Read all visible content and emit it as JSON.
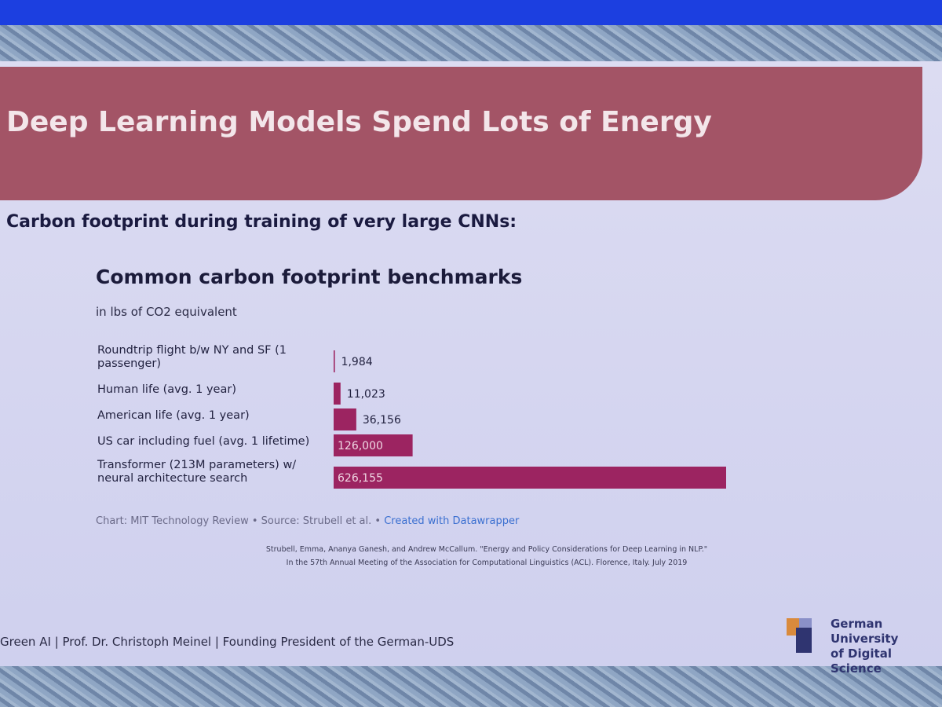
{
  "slide": {
    "title": "Deep Learning Models Spend Lots of Energy",
    "subtitle": "Carbon footprint during training of very large CNNs:",
    "chart_source": "Chart: MIT Technology Review • Source: Strubell et al. •",
    "chart_credit": "Created with Datawrapper",
    "citation": [
      "Strubell, Emma, Ananya Ganesh, and Andrew McCallum. \"Energy and Policy Considerations for Deep Learning in NLP.\"",
      "In the 57th Annual Meeting of the Association for Computational Linguistics (ACL). Florence, Italy. July 2019"
    ],
    "footer": "Green AI | Prof. Dr. Christoph Meinel | Founding President of the German-UDS",
    "logo": [
      "German University",
      "of Digital Science"
    ]
  },
  "chart_data": {
    "type": "hbar",
    "title": "Common carbon footprint benchmarks",
    "subtitle": "in lbs of CO2 equivalent",
    "categories": [
      "Roundtrip flight b/w NY and SF (1 passenger)",
      "Human life (avg. 1 year)",
      "American life (avg. 1 year)",
      "US car including fuel (avg. 1 lifetime)",
      "Transformer (213M parameters) w/ neural architecture search"
    ],
    "values": [
      1984,
      11023,
      36156,
      126000,
      626155
    ],
    "value_labels": [
      "1,984",
      "11,023",
      "36,156",
      "126,000",
      "626,155"
    ],
    "color": "#9c2461"
  }
}
